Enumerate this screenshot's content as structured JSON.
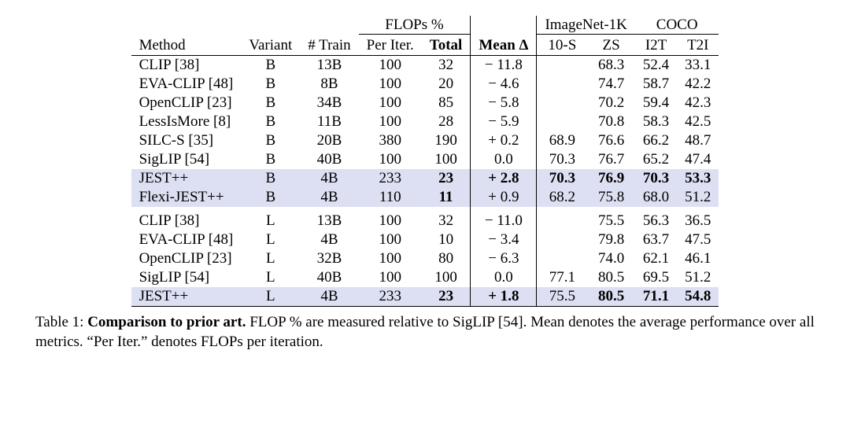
{
  "table": {
    "groups": {
      "flops": "FLOPs %",
      "mean": "Mean Δ",
      "imagenet": "ImageNet-1K",
      "coco": "COCO"
    },
    "columns": {
      "method": "Method",
      "variant": "Variant",
      "train": "# Train",
      "per_iter": "Per Iter.",
      "total": "Total",
      "ten_s": "10-S",
      "zs": "ZS",
      "i2t": "I2T",
      "t2i": "T2I"
    },
    "rows": [
      {
        "method": "CLIP [38]",
        "variant": "B",
        "train": "13B",
        "per_iter": "100",
        "total": "32",
        "mean": "− 11.8",
        "ten_s": "",
        "zs": "68.3",
        "i2t": "52.4",
        "t2i": "33.1",
        "hl": false,
        "bold": {}
      },
      {
        "method": "EVA-CLIP [48]",
        "variant": "B",
        "train": "8B",
        "per_iter": "100",
        "total": "20",
        "mean": "− 4.6",
        "ten_s": "",
        "zs": "74.7",
        "i2t": "58.7",
        "t2i": "42.2",
        "hl": false,
        "bold": {}
      },
      {
        "method": "OpenCLIP [23]",
        "variant": "B",
        "train": "34B",
        "per_iter": "100",
        "total": "85",
        "mean": "− 5.8",
        "ten_s": "",
        "zs": "70.2",
        "i2t": "59.4",
        "t2i": "42.3",
        "hl": false,
        "bold": {}
      },
      {
        "method": "LessIsMore [8]",
        "variant": "B",
        "train": "11B",
        "per_iter": "100",
        "total": "28",
        "mean": "− 5.9",
        "ten_s": "",
        "zs": "70.8",
        "i2t": "58.3",
        "t2i": "42.5",
        "hl": false,
        "bold": {}
      },
      {
        "method": "SILC-S [35]",
        "variant": "B",
        "train": "20B",
        "per_iter": "380",
        "total": "190",
        "mean": "+ 0.2",
        "ten_s": "68.9",
        "zs": "76.6",
        "i2t": "66.2",
        "t2i": "48.7",
        "hl": false,
        "bold": {}
      },
      {
        "method": "SigLIP [54]",
        "variant": "B",
        "train": "40B",
        "per_iter": "100",
        "total": "100",
        "mean": "0.0",
        "ten_s": "70.3",
        "zs": "76.7",
        "i2t": "65.2",
        "t2i": "47.4",
        "hl": false,
        "bold": {}
      },
      {
        "method": "JEST++",
        "variant": "B",
        "train": "4B",
        "per_iter": "233",
        "total": "23",
        "mean": "+ 2.8",
        "ten_s": "70.3",
        "zs": "76.9",
        "i2t": "70.3",
        "t2i": "53.3",
        "hl": true,
        "bold": {
          "total": true,
          "mean": true,
          "ten_s": true,
          "zs": true,
          "i2t": true,
          "t2i": true
        }
      },
      {
        "method": "Flexi-JEST++",
        "variant": "B",
        "train": "4B",
        "per_iter": "110",
        "total": "11",
        "mean": "+ 0.9",
        "ten_s": "68.2",
        "zs": "75.8",
        "i2t": "68.0",
        "t2i": "51.2",
        "hl": true,
        "bold": {
          "total": true
        }
      },
      {
        "gap": true
      },
      {
        "method": "CLIP [38]",
        "variant": "L",
        "train": "13B",
        "per_iter": "100",
        "total": "32",
        "mean": "− 11.0",
        "ten_s": "",
        "zs": "75.5",
        "i2t": "56.3",
        "t2i": "36.5",
        "hl": false,
        "bold": {}
      },
      {
        "method": "EVA-CLIP [48]",
        "variant": "L",
        "train": "4B",
        "per_iter": "100",
        "total": "10",
        "mean": "− 3.4",
        "ten_s": "",
        "zs": "79.8",
        "i2t": "63.7",
        "t2i": "47.5",
        "hl": false,
        "bold": {}
      },
      {
        "method": "OpenCLIP [23]",
        "variant": "L",
        "train": "32B",
        "per_iter": "100",
        "total": "80",
        "mean": "− 6.3",
        "ten_s": "",
        "zs": "74.0",
        "i2t": "62.1",
        "t2i": "46.1",
        "hl": false,
        "bold": {}
      },
      {
        "method": "SigLIP [54]",
        "variant": "L",
        "train": "40B",
        "per_iter": "100",
        "total": "100",
        "mean": "0.0",
        "ten_s": "77.1",
        "zs": "80.5",
        "i2t": "69.5",
        "t2i": "51.2",
        "hl": false,
        "bold": {}
      },
      {
        "method": "JEST++",
        "variant": "L",
        "train": "4B",
        "per_iter": "233",
        "total": "23",
        "mean": "+ 1.8",
        "ten_s": "75.5",
        "zs": "80.5",
        "i2t": "71.1",
        "t2i": "54.8",
        "hl": true,
        "bold": {
          "total": true,
          "mean": true,
          "zs": true,
          "i2t": true,
          "t2i": true
        }
      }
    ],
    "styling": {
      "highlight_color": "#dddff2",
      "background_color": "#ffffff",
      "rule_color": "#000000",
      "font_family": "Times New Roman",
      "base_font_size_pt": 14
    }
  },
  "caption": {
    "label": "Table 1:",
    "title": "Comparison to prior art.",
    "text": "FLOP % are measured relative to SigLIP [54]. Mean denotes the average performance over all metrics. “Per Iter.” denotes FLOPs per iteration."
  }
}
